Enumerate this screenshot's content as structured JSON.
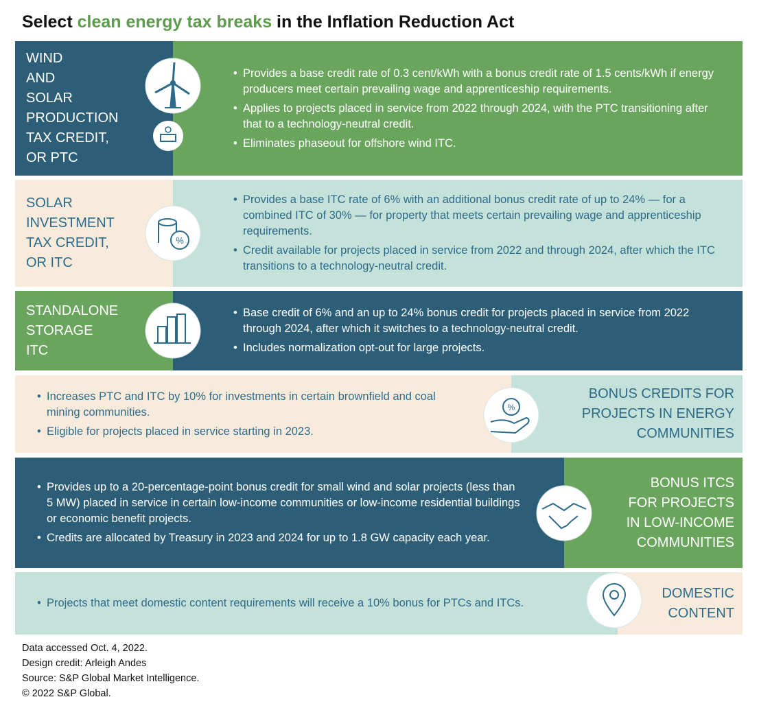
{
  "title": {
    "before": "Select ",
    "highlight": "clean energy tax breaks",
    "after": " in the Inflation Reduction Act"
  },
  "rows": [
    {
      "label": [
        "WIND",
        "AND",
        "SOLAR",
        "PRODUCTION",
        "TAX CREDIT,",
        "OR PTC"
      ],
      "bullets": [
        "Provides a base credit rate of 0.3 cent/kWh with a bonus credit rate of 1.5 cents/kWh if energy producers meet certain prevailing wage and apprenticeship requirements.",
        "Applies to projects placed in service from 2022 through 2024, with the PTC transitioning after that to a technology-neutral credit.",
        "Eliminates phaseout for offshore wind ITC."
      ]
    },
    {
      "label": [
        "SOLAR",
        "INVESTMENT",
        "TAX CREDIT,",
        "OR ITC"
      ],
      "bullets": [
        "Provides a base ITC rate of 6% with an additional bonus credit rate of up to 24% — for a combined ITC of 30% — for property that meets certain prevailing wage and apprenticeship requirements.",
        "Credit available for projects placed in service from 2022 and through 2024, after which the ITC transitions to a technology-neutral credit."
      ]
    },
    {
      "label": [
        "STANDALONE",
        "STORAGE",
        "ITC"
      ],
      "bullets": [
        "Base credit of 6% and an up to 24% bonus credit for projects placed in service from 2022 through 2024, after which it switches to a technology-neutral credit.",
        "Includes normalization opt-out for large projects."
      ]
    },
    {
      "label": [
        "BONUS CREDITS FOR",
        "PROJECTS IN ENERGY",
        "COMMUNITIES"
      ],
      "bullets": [
        "Increases PTC and ITC by 10% for investments in certain brownfield and coal mining communities.",
        "Eligible for projects placed in service starting in 2023."
      ]
    },
    {
      "label": [
        "BONUS ITCS",
        "FOR PROJECTS",
        "IN LOW-INCOME",
        "COMMUNITIES"
      ],
      "bullets": [
        "Provides up to a 20-percentage-point bonus credit for small wind and solar projects (less than 5 MW) placed in service in certain low-income communities or low-income residential buildings or economic benefit projects.",
        "Credits are allocated by Treasury in 2023 and 2024 for up to 1.8 GW capacity each year."
      ]
    },
    {
      "label": [
        "DOMESTIC",
        "CONTENT"
      ],
      "bullets": [
        "Projects that meet domestic content requirements will receive a 10% bonus for PTCs and ITCs."
      ]
    }
  ],
  "footer": [
    "Data accessed Oct. 4, 2022.",
    "Design credit: Arleigh Andes",
    "Source: S&P Global Market Intelligence.",
    "© 2022 S&P Global."
  ]
}
